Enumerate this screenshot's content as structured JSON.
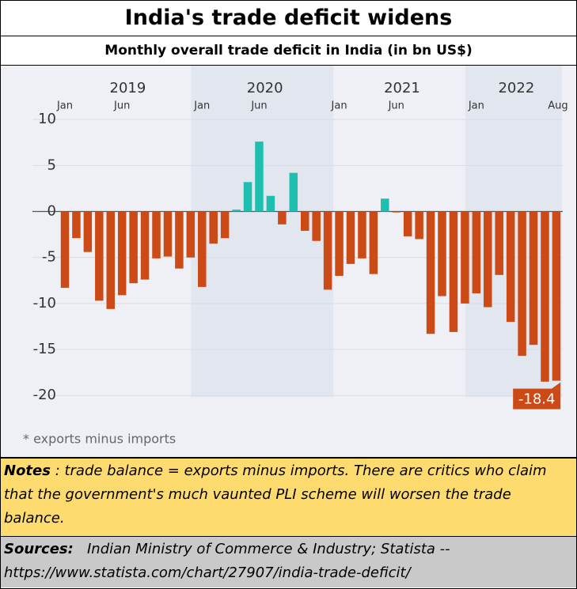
{
  "chart_data": {
    "type": "bar",
    "title": "India's trade deficit widens",
    "subtitle": "Monthly overall trade deficit in India (in bn US$)",
    "years": [
      "2019",
      "2020",
      "2021",
      "2022"
    ],
    "categories": [
      "Jan",
      null,
      null,
      null,
      null,
      "Jun",
      null,
      null,
      null,
      null,
      null,
      null,
      "Jan",
      null,
      null,
      null,
      null,
      "Jun",
      null,
      null,
      null,
      null,
      null,
      null,
      "Jan",
      null,
      null,
      null,
      null,
      "Jun",
      null,
      null,
      null,
      null,
      null,
      null,
      "Jan",
      null,
      null,
      null,
      null,
      null,
      null,
      "Aug"
    ],
    "values": [
      -8.3,
      -2.9,
      -4.4,
      -9.7,
      -10.6,
      -9.1,
      -7.8,
      -7.4,
      -5.1,
      -4.9,
      -6.2,
      -5.0,
      -8.2,
      -3.5,
      -2.9,
      0.2,
      3.2,
      7.6,
      1.7,
      -1.4,
      4.2,
      -2.1,
      -3.2,
      -8.5,
      -7.0,
      -5.7,
      -5.1,
      -6.8,
      1.4,
      -0.1,
      -2.7,
      -3.0,
      -13.3,
      -9.2,
      -13.1,
      -10.0,
      -8.9,
      -10.4,
      -6.9,
      -12.0,
      -15.7,
      -14.5,
      -18.5,
      -18.4
    ],
    "negative_color": "#cc4a16",
    "positive_color": "#1fbfb0",
    "ylim": [
      -26,
      15
    ],
    "yticks": [
      10,
      5,
      0,
      -5,
      -10,
      -15,
      -20
    ],
    "grid": true,
    "data_label": "last",
    "footnote": "* exports minus imports"
  },
  "notes": {
    "label": "Notes",
    "text": " : trade balance = exports minus imports. There are critics who claim that the government's much vaunted PLI scheme will worsen the trade balance."
  },
  "sources": {
    "label": "Sources:",
    "text": "   Indian Ministry of Commerce & Industry; Statista -- https://www.statista.com/chart/27907/india-trade-deficit/"
  }
}
